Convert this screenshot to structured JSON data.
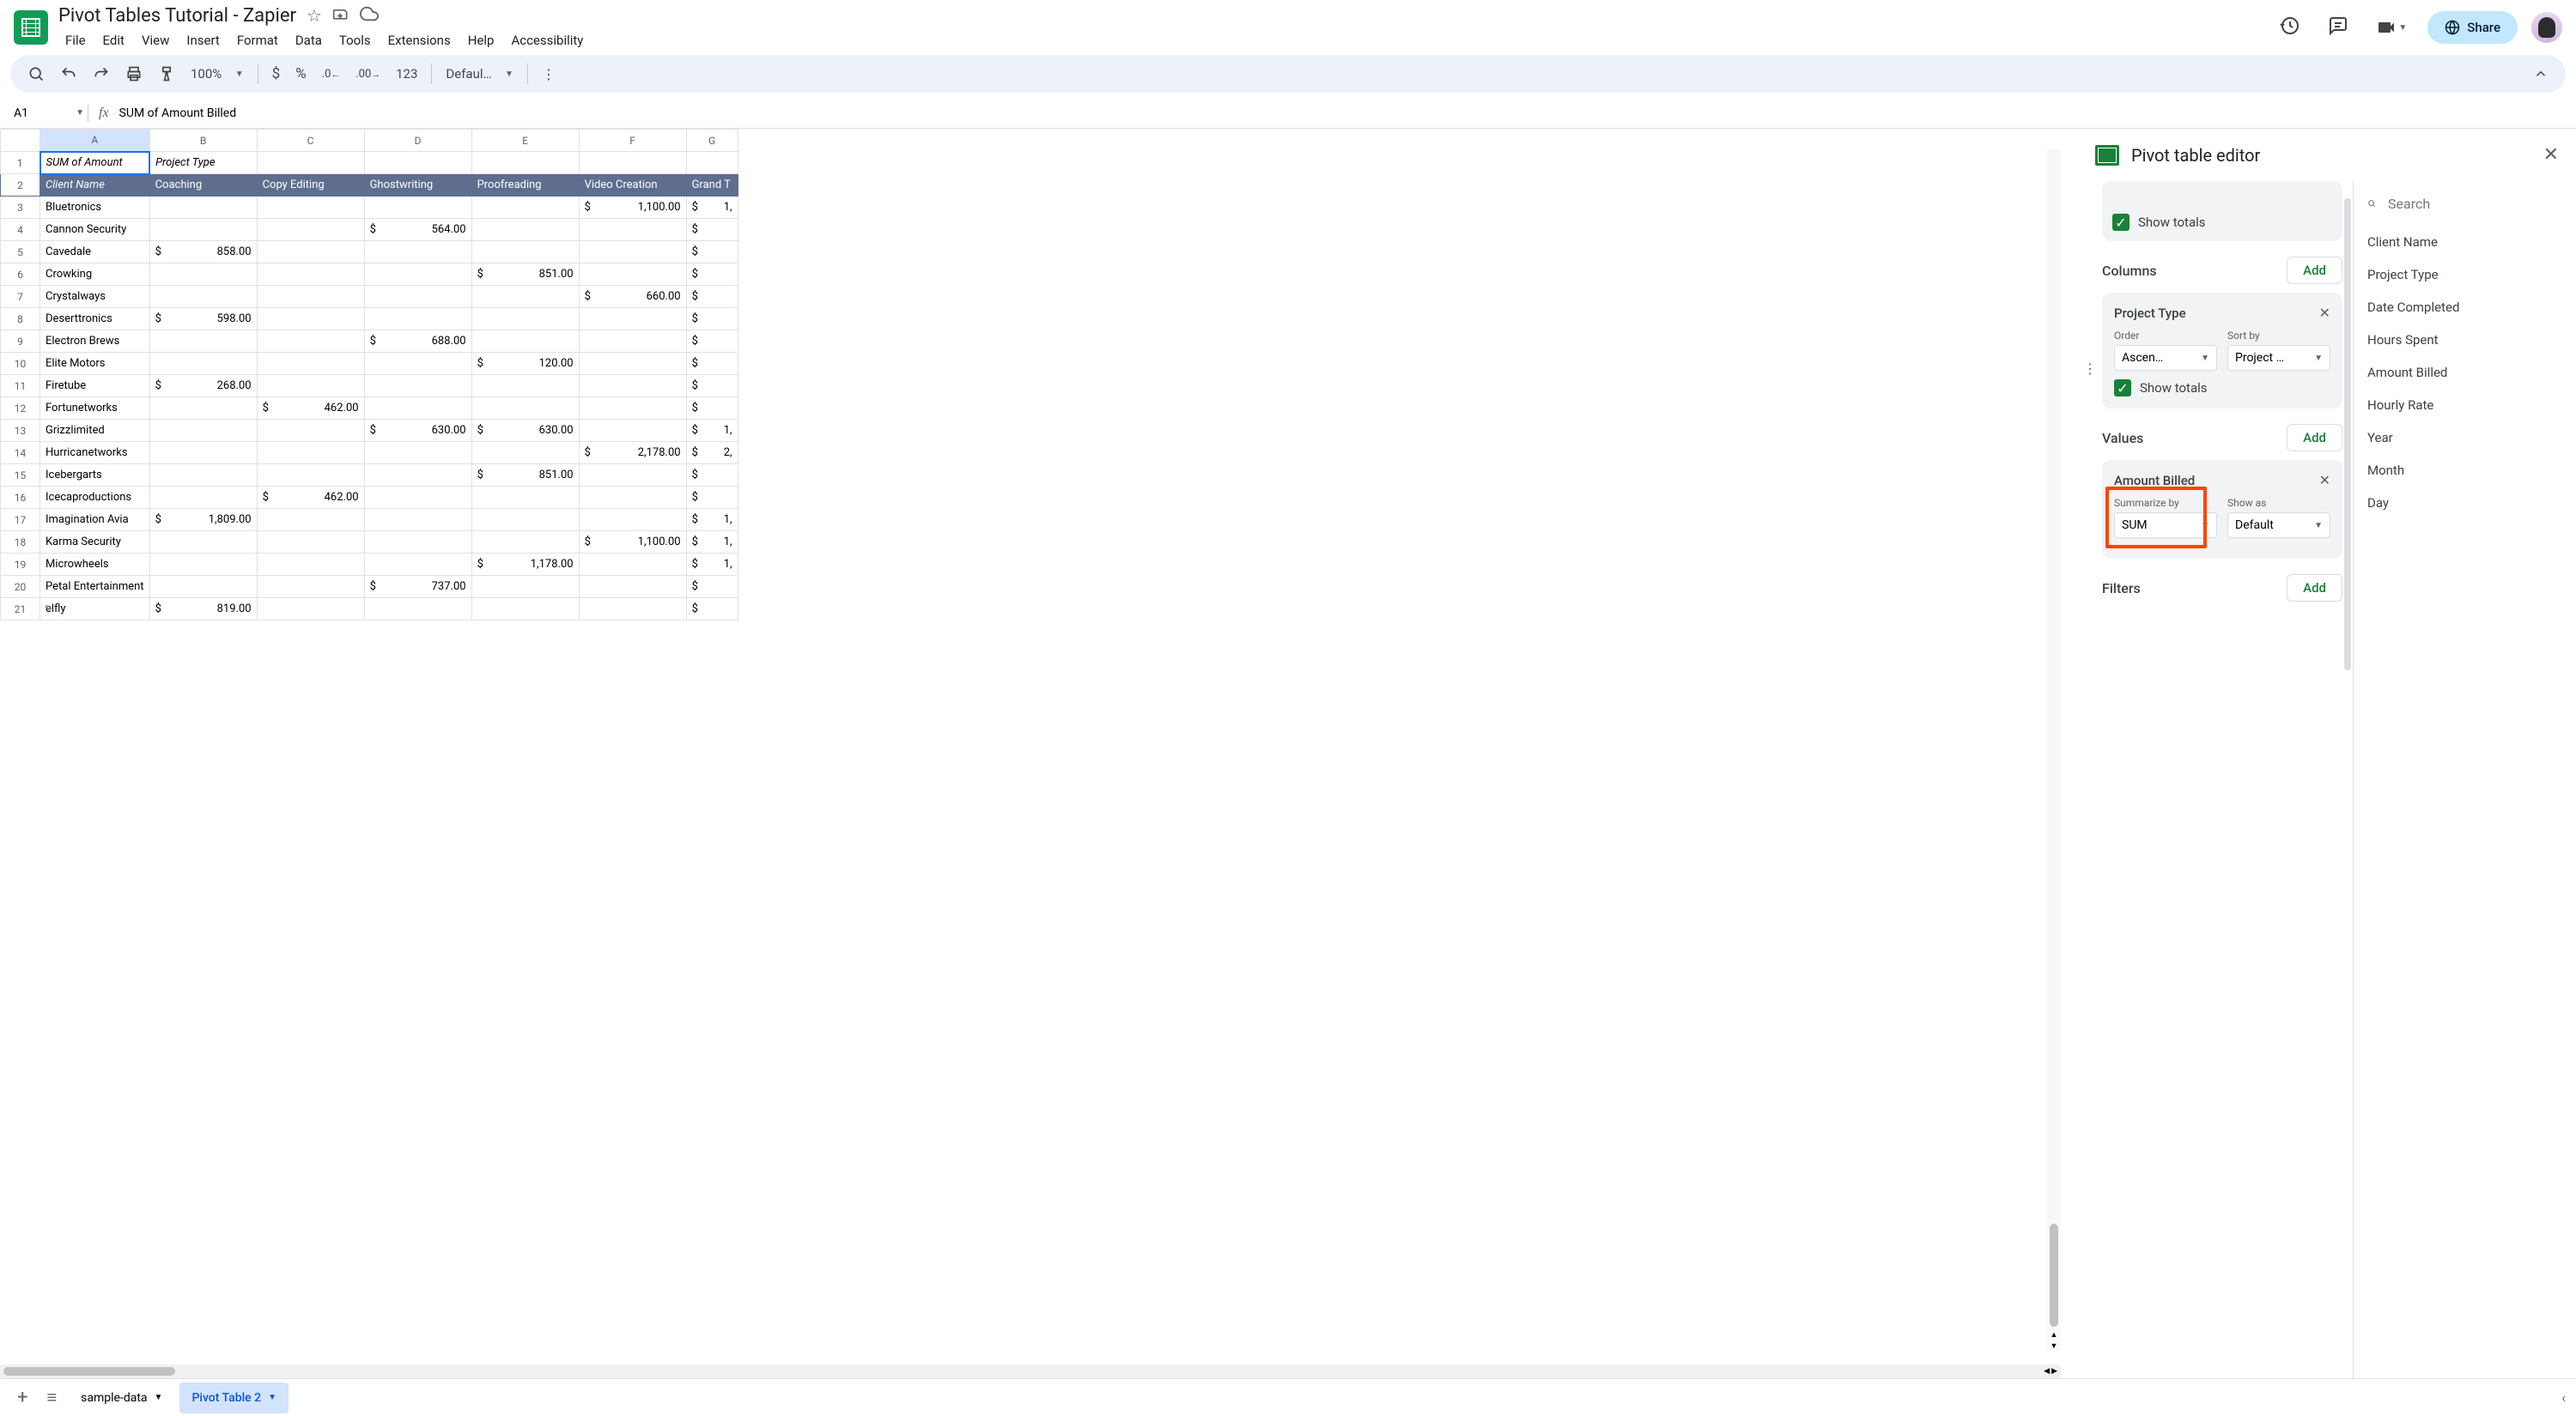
{
  "doc": {
    "title": "Pivot Tables Tutorial - Zapier"
  },
  "menus": [
    "File",
    "Edit",
    "View",
    "Insert",
    "Format",
    "Data",
    "Tools",
    "Extensions",
    "Help",
    "Accessibility"
  ],
  "share": "Share",
  "toolbar": {
    "zoom": "100%",
    "number_format": "123",
    "font": "Defaul…"
  },
  "formula": {
    "cell": "A1",
    "value": "SUM of  Amount Billed"
  },
  "columns": [
    "A",
    "B",
    "C",
    "D",
    "E",
    "F",
    "G"
  ],
  "header1": {
    "a": "SUM of  Amount",
    "b": "Project Type"
  },
  "header2": [
    "Client Name",
    "Coaching",
    "Copy Editing",
    "Ghostwriting",
    "Proofreading",
    "Video Creation",
    "Grand T"
  ],
  "rows": [
    {
      "n": 3,
      "name": "Bluetronics",
      "f": "1,100.00",
      "g": "1,"
    },
    {
      "n": 4,
      "name": "Cannon Security",
      "d": "564.00",
      "g": ""
    },
    {
      "n": 5,
      "name": "Cavedale",
      "b": "858.00",
      "g": ""
    },
    {
      "n": 6,
      "name": "Crowking",
      "e": "851.00",
      "g": ""
    },
    {
      "n": 7,
      "name": "Crystalways",
      "f": "660.00",
      "g": ""
    },
    {
      "n": 8,
      "name": "Deserttronics",
      "b": "598.00",
      "g": ""
    },
    {
      "n": 9,
      "name": "Electron Brews",
      "d": "688.00",
      "g": ""
    },
    {
      "n": 10,
      "name": "Elite Motors",
      "e": "120.00",
      "g": ""
    },
    {
      "n": 11,
      "name": "Firetube",
      "b": "268.00",
      "g": ""
    },
    {
      "n": 12,
      "name": "Fortunetworks",
      "c": "462.00",
      "g": ""
    },
    {
      "n": 13,
      "name": "Grizzlimited",
      "d": "630.00",
      "e": "630.00",
      "g": "1,"
    },
    {
      "n": 14,
      "name": "Hurricanetworks",
      "f": "2,178.00",
      "g": "2,"
    },
    {
      "n": 15,
      "name": "Icebergarts",
      "e": "851.00",
      "g": ""
    },
    {
      "n": 16,
      "name": "Icecaproductions",
      "c": "462.00",
      "g": ""
    },
    {
      "n": 17,
      "name": "Imagination Avia",
      "b": "1,809.00",
      "g": "1,"
    },
    {
      "n": 18,
      "name": "Karma Security",
      "f": "1,100.00",
      "g": "1,"
    },
    {
      "n": 19,
      "name": "Microwheels",
      "e": "1,178.00",
      "g": "1,"
    },
    {
      "n": 20,
      "name": "Petal Entertainment",
      "d": "737.00",
      "g": ""
    },
    {
      "n": 21,
      "name": "elfly",
      "b": "819.00",
      "g": "",
      "pencil": true
    }
  ],
  "sidebar": {
    "title": "Pivot table editor",
    "show_totals": "Show totals",
    "columns_label": "Columns",
    "values_label": "Values",
    "filters_label": "Filters",
    "add": "Add",
    "col_card": {
      "title": "Project Type",
      "order": "Order",
      "order_val": "Ascen…",
      "sortby": "Sort by",
      "sortby_val": "Project …"
    },
    "val_card": {
      "title": "Amount Billed",
      "sum_label": "Summarize by",
      "sum_val": "SUM",
      "show_label": "Show as",
      "show_val": "Default"
    },
    "search": "Search",
    "fields": [
      "Client Name",
      "Project Type",
      "Date Completed",
      "Hours Spent",
      "Amount Billed",
      "Hourly Rate",
      "Year",
      "Month",
      "Day"
    ]
  },
  "tabs": {
    "t1": "sample-data",
    "t2": "Pivot Table 2"
  }
}
